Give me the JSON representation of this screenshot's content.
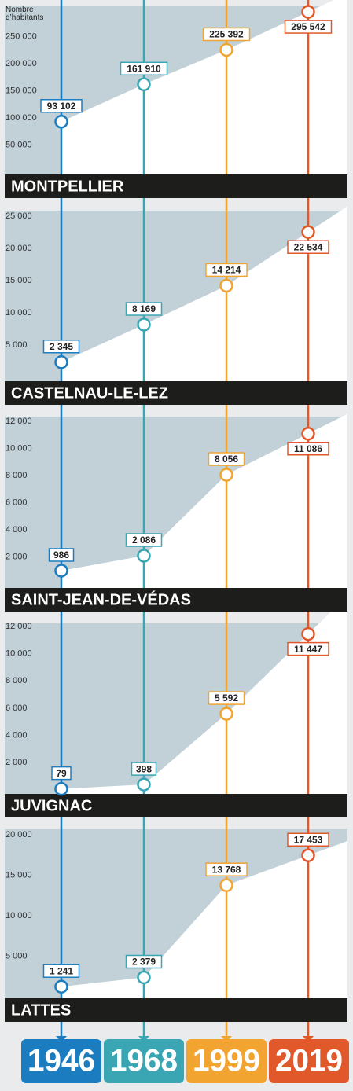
{
  "y_label": "Nombre d’habitants",
  "years": [
    {
      "label": "1946",
      "color": "#1b7dc0"
    },
    {
      "label": "1968",
      "color": "#3aa6b3"
    },
    {
      "label": "1999",
      "color": "#f2a430"
    },
    {
      "label": "2019",
      "color": "#e1582b"
    }
  ],
  "chart_data": [
    {
      "type": "area",
      "title": "MONTPELLIER",
      "values": [
        93102,
        161910,
        225392,
        295542
      ],
      "value_labels": [
        "93 102",
        "161 910",
        "225 392",
        "295 542"
      ],
      "ylim": [
        0,
        300000
      ],
      "yticks": [
        {
          "value": 50000,
          "label": "50 000"
        },
        {
          "value": 100000,
          "label": "100 000"
        },
        {
          "value": 150000,
          "label": "150 000"
        },
        {
          "value": 200000,
          "label": "200 000"
        },
        {
          "value": 250000,
          "label": "250 000"
        }
      ]
    },
    {
      "type": "area",
      "title": "CASTELNAU-LE-LEZ",
      "values": [
        2345,
        8169,
        14214,
        22534
      ],
      "value_labels": [
        "2 345",
        "8 169",
        "14 214",
        "22 534"
      ],
      "ylim": [
        0,
        25000
      ],
      "yticks": [
        {
          "value": 5000,
          "label": "5 000"
        },
        {
          "value": 10000,
          "label": "10 000"
        },
        {
          "value": 15000,
          "label": "15 000"
        },
        {
          "value": 20000,
          "label": "20 000"
        },
        {
          "value": 25000,
          "label": "25 000"
        }
      ]
    },
    {
      "type": "area",
      "title": "SAINT-JEAN-DE-VÉDAS",
      "values": [
        986,
        2086,
        8056,
        11086
      ],
      "value_labels": [
        "986",
        "2 086",
        "8 056",
        "11 086"
      ],
      "ylim": [
        0,
        12000
      ],
      "yticks": [
        {
          "value": 2000,
          "label": "2 000"
        },
        {
          "value": 4000,
          "label": "4 000"
        },
        {
          "value": 6000,
          "label": "6 000"
        },
        {
          "value": 8000,
          "label": "8 000"
        },
        {
          "value": 10000,
          "label": "10 000"
        },
        {
          "value": 12000,
          "label": "12 000"
        }
      ]
    },
    {
      "type": "area",
      "title": "JUVIGNAC",
      "values": [
        79,
        398,
        5592,
        11447
      ],
      "value_labels": [
        "79",
        "398",
        "5 592",
        "11 447"
      ],
      "ylim": [
        0,
        12000
      ],
      "yticks": [
        {
          "value": 2000,
          "label": "2 000"
        },
        {
          "value": 4000,
          "label": "4 000"
        },
        {
          "value": 6000,
          "label": "6 000"
        },
        {
          "value": 8000,
          "label": "8 000"
        },
        {
          "value": 10000,
          "label": "10 000"
        },
        {
          "value": 12000,
          "label": "12 000"
        }
      ]
    },
    {
      "type": "area",
      "title": "LATTES",
      "values": [
        1241,
        2379,
        13768,
        17453
      ],
      "value_labels": [
        "1 241",
        "2 379",
        "13 768",
        "17 453"
      ],
      "ylim": [
        0,
        20000
      ],
      "yticks": [
        {
          "value": 5000,
          "label": "5 000"
        },
        {
          "value": 10000,
          "label": "10 000"
        },
        {
          "value": 15000,
          "label": "15 000"
        },
        {
          "value": 20000,
          "label": "20 000"
        }
      ]
    }
  ]
}
